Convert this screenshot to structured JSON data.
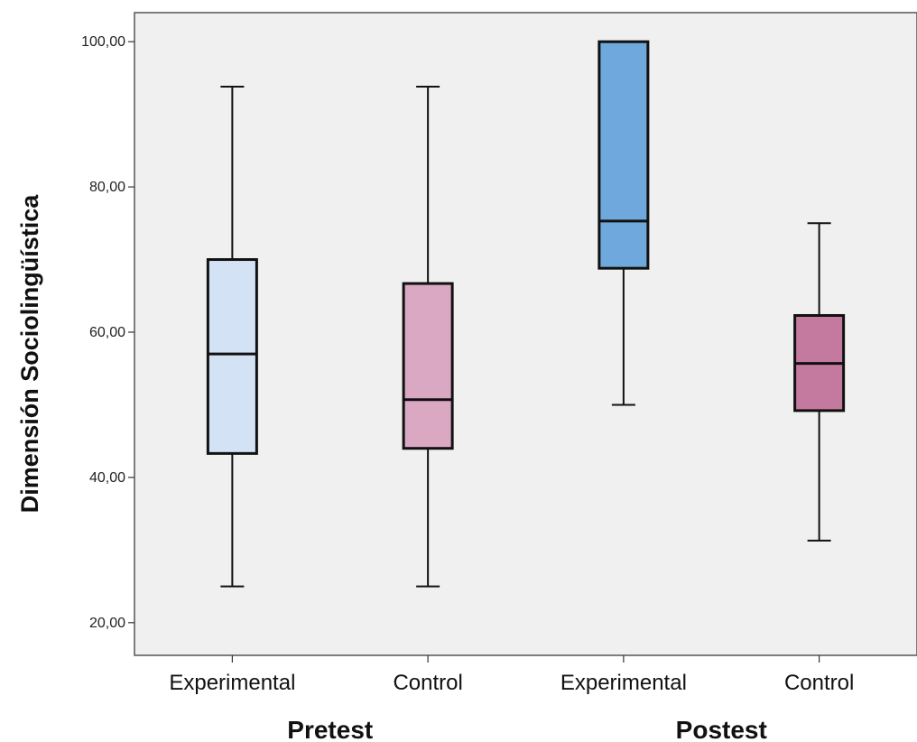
{
  "chart_data": {
    "type": "box",
    "title": "",
    "ylabel": "Dimensión Sociolingüística",
    "xlabel": "",
    "ylim": [
      15.5,
      104
    ],
    "yticks": [
      20,
      40,
      60,
      80,
      100
    ],
    "ytick_labels": [
      "20,00",
      "40,00",
      "60,00",
      "80,00",
      "100,00"
    ],
    "grid": false,
    "legend": "none",
    "groups": [
      {
        "label": "Pretest",
        "categories": [
          "Experimental",
          "Control"
        ]
      },
      {
        "label": "Postest",
        "categories": [
          "Experimental",
          "Control"
        ]
      }
    ],
    "boxes": [
      {
        "group": "Pretest",
        "category": "Experimental",
        "min": 25.0,
        "q1": 43.3,
        "median": 57.0,
        "q3": 70.0,
        "max": 93.8,
        "color": "#d3e3f5"
      },
      {
        "group": "Pretest",
        "category": "Control",
        "min": 25.0,
        "q1": 44.0,
        "median": 50.7,
        "q3": 66.7,
        "max": 93.8,
        "color": "#dba8c3"
      },
      {
        "group": "Postest",
        "category": "Experimental",
        "min": 50.0,
        "q1": 68.8,
        "median": 75.3,
        "q3": 100.0,
        "max": 100.0,
        "color": "#6fa8dc"
      },
      {
        "group": "Postest",
        "category": "Control",
        "min": 31.3,
        "q1": 49.2,
        "median": 55.7,
        "q3": 62.3,
        "max": 75.0,
        "color": "#c47a9e"
      }
    ]
  }
}
